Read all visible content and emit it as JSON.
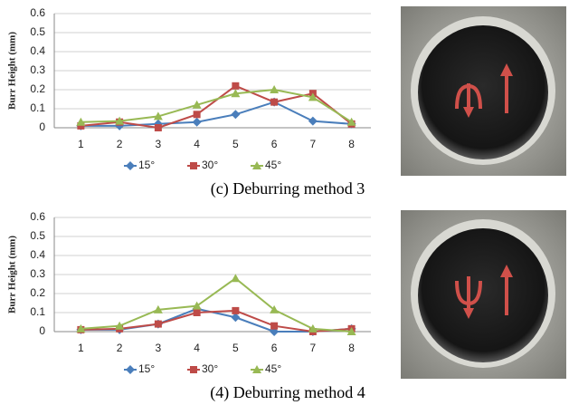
{
  "chart_data": [
    {
      "type": "line",
      "y_label": "Burr Height (mm)",
      "caption": "(c) Deburring method 3",
      "categories": [
        "1",
        "2",
        "3",
        "4",
        "5",
        "6",
        "7",
        "8"
      ],
      "ylim": [
        0,
        0.6
      ],
      "yticks": [
        0,
        0.1,
        0.2,
        0.3,
        0.4,
        0.5,
        0.6
      ],
      "grid": true,
      "series": [
        {
          "name": "15°",
          "color": "#4a7ebb",
          "marker": "diamond",
          "values": [
            0.01,
            0.01,
            0.02,
            0.03,
            0.07,
            0.135,
            0.035,
            0.02
          ]
        },
        {
          "name": "30°",
          "color": "#be4b48",
          "marker": "square",
          "values": [
            0.01,
            0.03,
            0.0,
            0.07,
            0.22,
            0.135,
            0.18,
            0.02
          ]
        },
        {
          "name": "45°",
          "color": "#98b954",
          "marker": "triangle",
          "values": [
            0.03,
            0.035,
            0.06,
            0.12,
            0.18,
            0.2,
            0.16,
            0.03
          ]
        }
      ]
    },
    {
      "type": "line",
      "y_label": "Burr Height (mm)",
      "caption": "(4) Deburring method 4",
      "categories": [
        "1",
        "2",
        "3",
        "4",
        "5",
        "6",
        "7",
        "8"
      ],
      "ylim": [
        0,
        0.6
      ],
      "yticks": [
        0,
        0.1,
        0.2,
        0.3,
        0.4,
        0.5,
        0.6
      ],
      "grid": true,
      "series": [
        {
          "name": "15°",
          "color": "#4a7ebb",
          "marker": "diamond",
          "values": [
            0.01,
            0.01,
            0.04,
            0.12,
            0.075,
            0.0,
            0.0,
            0.015
          ]
        },
        {
          "name": "30°",
          "color": "#be4b48",
          "marker": "square",
          "values": [
            0.01,
            0.015,
            0.04,
            0.1,
            0.11,
            0.03,
            0.0,
            0.015
          ]
        },
        {
          "name": "45°",
          "color": "#98b954",
          "marker": "triangle",
          "values": [
            0.015,
            0.03,
            0.115,
            0.135,
            0.28,
            0.115,
            0.015,
            0.0
          ]
        }
      ]
    }
  ]
}
